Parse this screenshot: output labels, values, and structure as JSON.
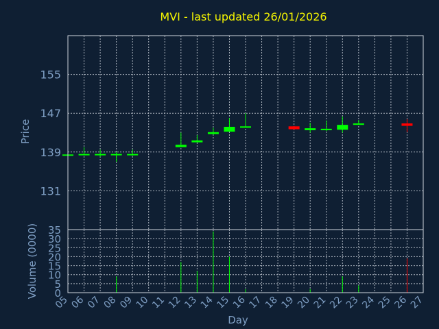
{
  "chart_data": [
    {
      "type": "candlestick",
      "title": "MVI - last updated 26/01/2026",
      "ylabel": "Price",
      "ylim": [
        123,
        163
      ],
      "yticks": [
        131,
        139,
        147,
        155
      ],
      "grid": true,
      "up_color": "#00ff00",
      "down_color": "#ff0000",
      "candles": [
        {
          "x": 5,
          "open": 138.3,
          "close": 138.5,
          "high": 138.7,
          "low": 138.1
        },
        {
          "x": 6,
          "open": 138.4,
          "close": 138.6,
          "high": 140.0,
          "low": 138.3
        },
        {
          "x": 7,
          "open": 138.4,
          "close": 138.6,
          "high": 139.5,
          "low": 138.0
        },
        {
          "x": 8,
          "open": 138.4,
          "close": 138.6,
          "high": 139.0,
          "low": 137.0
        },
        {
          "x": 9,
          "open": 138.4,
          "close": 138.6,
          "high": 139.5,
          "low": 138.2
        },
        {
          "x": 12,
          "open": 140.0,
          "close": 140.5,
          "high": 143.0,
          "low": 140.0
        },
        {
          "x": 13,
          "open": 141.0,
          "close": 141.4,
          "high": 142.5,
          "low": 141.0
        },
        {
          "x": 14,
          "open": 142.7,
          "close": 143.1,
          "high": 144.0,
          "low": 142.6
        },
        {
          "x": 15,
          "open": 143.2,
          "close": 144.2,
          "high": 146.0,
          "low": 143.2
        },
        {
          "x": 16,
          "open": 144.0,
          "close": 144.3,
          "high": 147.0,
          "low": 144.0
        },
        {
          "x": 19,
          "open": 144.3,
          "close": 143.7,
          "high": 144.4,
          "low": 143.6
        },
        {
          "x": 20,
          "open": 143.5,
          "close": 143.9,
          "high": 145.0,
          "low": 143.0
        },
        {
          "x": 21,
          "open": 143.5,
          "close": 143.8,
          "high": 145.5,
          "low": 143.3
        },
        {
          "x": 22,
          "open": 143.6,
          "close": 144.6,
          "high": 146.3,
          "low": 143.0
        },
        {
          "x": 23,
          "open": 144.6,
          "close": 144.9,
          "high": 145.6,
          "low": 144.6
        },
        {
          "x": 26,
          "open": 144.9,
          "close": 144.4,
          "high": 145.8,
          "low": 143.1
        }
      ]
    },
    {
      "type": "bar",
      "ylabel": "Volume (0000)",
      "xlabel": "Day",
      "ylim": [
        0,
        35
      ],
      "yticks": [
        0,
        5,
        10,
        15,
        20,
        25,
        30,
        35
      ],
      "xticks": [
        "05",
        "06",
        "07",
        "08",
        "09",
        "10",
        "11",
        "12",
        "13",
        "14",
        "15",
        "16",
        "17",
        "18",
        "19",
        "20",
        "21",
        "22",
        "23",
        "24",
        "25",
        "26",
        "27"
      ],
      "grid": true,
      "bars": [
        {
          "x": 8,
          "value": 9,
          "color": "#00ff00"
        },
        {
          "x": 12,
          "value": 17,
          "color": "#00ff00"
        },
        {
          "x": 13,
          "value": 12,
          "color": "#00ff00"
        },
        {
          "x": 14,
          "value": 34,
          "color": "#00ff00"
        },
        {
          "x": 15,
          "value": 20,
          "color": "#00ff00"
        },
        {
          "x": 16,
          "value": 2,
          "color": "#00ff00"
        },
        {
          "x": 20,
          "value": 2,
          "color": "#00ff00"
        },
        {
          "x": 22,
          "value": 9,
          "color": "#00ff00"
        },
        {
          "x": 23,
          "value": 4,
          "color": "#00ff00"
        },
        {
          "x": 26,
          "value": 19,
          "color": "#ff0000"
        }
      ]
    }
  ]
}
